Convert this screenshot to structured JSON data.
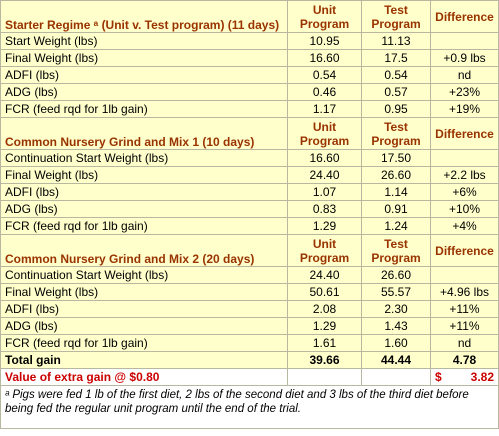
{
  "sections": [
    {
      "title": "Starter Regime ᵃ (Unit v. Test program) (11 days)",
      "columns": [
        "Unit Program",
        "Test Program",
        "Difference"
      ],
      "rows": [
        {
          "label": "Start Weight (lbs)",
          "unit": "10.95",
          "test": "11.13"
        },
        {
          "label": "Final Weight (lbs)",
          "unit": "16.60",
          "test": "17.5",
          "difference": "+0.9 lbs"
        },
        {
          "label": "ADFI (lbs)",
          "unit": "0.54",
          "test": "0.54",
          "difference": "nd"
        },
        {
          "label": "ADG (lbs)",
          "unit": "0.46",
          "test": "0.57",
          "difference": "+23%"
        },
        {
          "label": "FCR (feed rqd for 1lb gain)",
          "unit": "1.17",
          "test": "0.95",
          "difference": "+19%"
        }
      ]
    },
    {
      "title": "Common Nursery Grind and Mix 1 (10 days)",
      "columns": [
        "Unit Program",
        "Test Program",
        "Difference"
      ],
      "rows": [
        {
          "label": "Continuation Start Weight (lbs)",
          "unit": "16.60",
          "test": "17.50"
        },
        {
          "label": "Final Weight (lbs)",
          "unit": "24.40",
          "test": "26.60",
          "difference": "+2.2 lbs"
        },
        {
          "label": "ADFI (lbs)",
          "unit": "1.07",
          "test": "1.14",
          "difference": "+6%"
        },
        {
          "label": "ADG (lbs)",
          "unit": "0.83",
          "test": "0.91",
          "difference": "+10%"
        },
        {
          "label": "FCR (feed rqd for 1lb gain)",
          "unit": "1.29",
          "test": "1.24",
          "difference": "+4%"
        }
      ]
    },
    {
      "title": "Common Nursery Grind and Mix 2 (20 days)",
      "columns": [
        "Unit Program",
        "Test Program",
        "Difference"
      ],
      "rows": [
        {
          "label": "Continuation Start Weight (lbs)",
          "unit": "24.40",
          "test": "26.60"
        },
        {
          "label": "Final Weight (lbs)",
          "unit": "50.61",
          "test": "55.57",
          "difference": "+4.96 lbs"
        },
        {
          "label": "ADFI (lbs)",
          "unit": "2.08",
          "test": "2.30",
          "difference": "+11%"
        },
        {
          "label": "ADG (lbs)",
          "unit": "1.29",
          "test": "1.43",
          "difference": "+11%"
        },
        {
          "label": "FCR (feed rqd for 1lb gain)",
          "unit": "1.61",
          "test": "1.60",
          "difference": "nd"
        }
      ]
    }
  ],
  "total": {
    "label": "Total gain",
    "unit": "39.66",
    "test": "44.44",
    "difference": "4.78"
  },
  "value_row": {
    "label": "Value of extra gain @ $0.80",
    "currency": "$",
    "amount": "3.82"
  },
  "footnote": {
    "marker": "ᵃ",
    "text": "Pigs were fed 1 lb of the first diet, 2 lbs of the second diet and 3 lbs of the third diet before being  fed the regular unit program until the end of the trial."
  }
}
